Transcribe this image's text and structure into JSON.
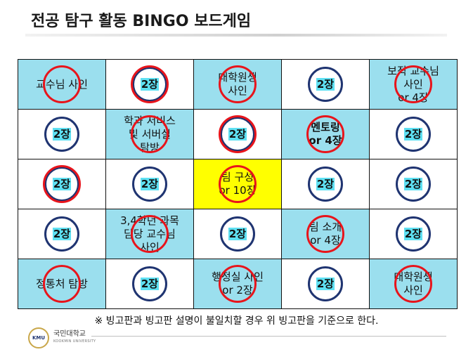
{
  "title": "전공 탐구 활동 BINGO 보드게임",
  "note": "※ 빙고판과 빙고판 설명이 불일치할 경우 위 빙고판을 기준으로 한다.",
  "footer": {
    "logo_text": "KMU",
    "university_name": "국민대학교",
    "university_subtitle": "KOOKMIN UNIVERSITY"
  },
  "colors": {
    "cyan_cell": "#9bdfee",
    "yellow_cell": "#ffff00",
    "badge_ring": "#1f3471",
    "badge_highlight": "#5ee0f2",
    "stamp": "#e8141b"
  },
  "board": {
    "rows": [
      [
        {
          "type": "mission",
          "text": "교수님 사인",
          "bg": "cyan",
          "bold": false,
          "stamped": true
        },
        {
          "type": "badge",
          "text": "2장",
          "bg": "white",
          "stamped": true
        },
        {
          "type": "mission",
          "text": "대학원생\n사인",
          "bg": "cyan",
          "bold": false,
          "stamped": true
        },
        {
          "type": "badge",
          "text": "2장",
          "bg": "white",
          "stamped": false
        },
        {
          "type": "mission",
          "text": "보직 교수님\n사인\nor 4장",
          "bg": "cyan",
          "bold": false,
          "stamped": true
        }
      ],
      [
        {
          "type": "badge",
          "text": "2장",
          "bg": "white",
          "stamped": false
        },
        {
          "type": "mission",
          "text": "학과 서비스\n및 서버실\n탐방",
          "bg": "cyan",
          "bold": false,
          "stamped": true
        },
        {
          "type": "badge",
          "text": "2장",
          "bg": "white",
          "stamped": true
        },
        {
          "type": "mission",
          "text": "멘토링\nor 4장",
          "bg": "cyan",
          "bold": true,
          "stamped": true
        },
        {
          "type": "badge",
          "text": "2장",
          "bg": "white",
          "stamped": false
        }
      ],
      [
        {
          "type": "badge",
          "text": "2장",
          "bg": "white",
          "stamped": true
        },
        {
          "type": "badge",
          "text": "2장",
          "bg": "white",
          "stamped": false
        },
        {
          "type": "mission",
          "text": "팀 구성\nor 10장",
          "bg": "yellow",
          "bold": false,
          "stamped": true
        },
        {
          "type": "badge",
          "text": "2장",
          "bg": "white",
          "stamped": false
        },
        {
          "type": "badge",
          "text": "2장",
          "bg": "white",
          "stamped": false
        }
      ],
      [
        {
          "type": "badge",
          "text": "2장",
          "bg": "white",
          "stamped": false
        },
        {
          "type": "mission",
          "text": "3,4학년 과목\n담당 교수님\n사인",
          "bg": "cyan",
          "bold": false,
          "stamped": true
        },
        {
          "type": "badge",
          "text": "2장",
          "bg": "white",
          "stamped": false
        },
        {
          "type": "mission",
          "text": "팀 소개\nor 4장",
          "bg": "cyan",
          "bold": false,
          "stamped": true
        },
        {
          "type": "badge",
          "text": "2장",
          "bg": "white",
          "stamped": false
        }
      ],
      [
        {
          "type": "mission",
          "text": "정통처 탐방",
          "bg": "cyan",
          "bold": false,
          "stamped": true
        },
        {
          "type": "badge",
          "text": "2장",
          "bg": "white",
          "stamped": false
        },
        {
          "type": "mission",
          "text": "행정실 사인\nor 2장",
          "bg": "cyan",
          "bold": false,
          "stamped": true
        },
        {
          "type": "badge",
          "text": "2장",
          "bg": "white",
          "stamped": false
        },
        {
          "type": "mission",
          "text": "대학원생\n사인",
          "bg": "cyan",
          "bold": false,
          "stamped": true
        }
      ]
    ]
  }
}
